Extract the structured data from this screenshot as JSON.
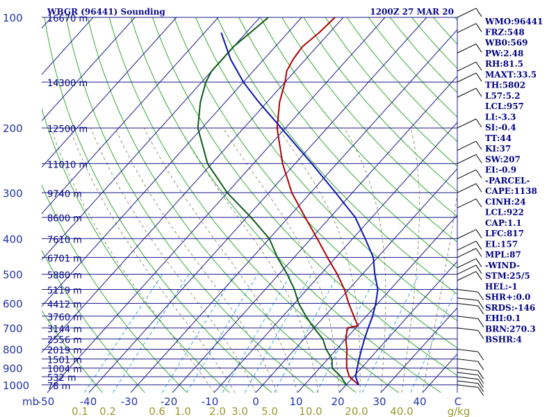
{
  "chart_data": {
    "type": "line",
    "title": "WBGR (96441) Sounding",
    "time": "1200Z 27 MAR 20",
    "x_axis_unit": "mb",
    "pressure_ticks": [
      "100",
      "200",
      "300",
      "400",
      "500",
      "600",
      "700",
      "800",
      "900",
      "1000"
    ],
    "temperature_ticks": [
      "-50",
      "-40",
      "-30",
      "-20",
      "-10",
      "0",
      "10",
      "20",
      "30",
      "40",
      "C"
    ],
    "mixing_ratio_ticks": [
      "0.1",
      "0.2",
      "0.6",
      "1.0",
      "2.0",
      "3.0",
      "5.0",
      "10.0",
      "20.0",
      "40.0",
      "g/kg"
    ],
    "height_levels": [
      {
        "p": 100,
        "label": "16670 m"
      },
      {
        "p": 150,
        "label": "14300 m"
      },
      {
        "p": 200,
        "label": "12500 m"
      },
      {
        "p": 250,
        "label": "11010 m"
      },
      {
        "p": 300,
        "label": "9740 m"
      },
      {
        "p": 350,
        "label": "8600 m"
      },
      {
        "p": 400,
        "label": "7610 m"
      },
      {
        "p": 450,
        "label": "6701 m"
      },
      {
        "p": 500,
        "label": "5880 m"
      },
      {
        "p": 550,
        "label": "5119 m"
      },
      {
        "p": 600,
        "label": "4412 m"
      },
      {
        "p": 650,
        "label": "3760 m"
      },
      {
        "p": 700,
        "label": "3144 m"
      },
      {
        "p": 750,
        "label": "2556 m"
      },
      {
        "p": 800,
        "label": "2019 m"
      },
      {
        "p": 850,
        "label": "1501 m"
      },
      {
        "p": 900,
        "label": "1004 m"
      },
      {
        "p": 950,
        "label": "532 m"
      },
      {
        "p": 1000,
        "label": "78 m"
      }
    ],
    "series": [
      {
        "name": "",
        "color": "#aa0000",
        "points": [
          [
            100,
            -62
          ],
          [
            110,
            -62.5
          ],
          [
            120,
            -63.5
          ],
          [
            130,
            -63
          ],
          [
            140,
            -62
          ],
          [
            150,
            -60
          ],
          [
            170,
            -57
          ],
          [
            200,
            -52
          ],
          [
            250,
            -43
          ],
          [
            300,
            -34.5
          ],
          [
            350,
            -26
          ],
          [
            400,
            -18.5
          ],
          [
            450,
            -12
          ],
          [
            500,
            -6
          ],
          [
            550,
            -1
          ],
          [
            600,
            3
          ],
          [
            650,
            7
          ],
          [
            690,
            10
          ],
          [
            700,
            8
          ],
          [
            750,
            10
          ],
          [
            800,
            12.5
          ],
          [
            850,
            14.5
          ],
          [
            900,
            16.5
          ],
          [
            950,
            19
          ],
          [
            1000,
            23
          ]
        ]
      },
      {
        "name": "",
        "color": "#0a5a14",
        "points": [
          [
            100,
            -78
          ],
          [
            110,
            -79
          ],
          [
            120,
            -80
          ],
          [
            130,
            -80
          ],
          [
            140,
            -80
          ],
          [
            150,
            -79
          ],
          [
            170,
            -76
          ],
          [
            200,
            -71
          ],
          [
            250,
            -61
          ],
          [
            300,
            -50
          ],
          [
            350,
            -39
          ],
          [
            400,
            -30
          ],
          [
            450,
            -24
          ],
          [
            500,
            -18
          ],
          [
            550,
            -13
          ],
          [
            600,
            -9
          ],
          [
            650,
            -4.5
          ],
          [
            700,
            0
          ],
          [
            750,
            4.5
          ],
          [
            800,
            7.5
          ],
          [
            850,
            11
          ],
          [
            900,
            13
          ],
          [
            950,
            17
          ],
          [
            1000,
            20
          ]
        ]
      },
      {
        "name": "",
        "color": "#0a14a8",
        "points": [
          [
            110,
            -86
          ],
          [
            130,
            -78
          ],
          [
            150,
            -70
          ],
          [
            170,
            -62
          ],
          [
            200,
            -51
          ],
          [
            250,
            -36
          ],
          [
            300,
            -24
          ],
          [
            350,
            -14
          ],
          [
            400,
            -7
          ],
          [
            450,
            -1
          ],
          [
            500,
            3
          ],
          [
            550,
            7
          ],
          [
            600,
            9.5
          ],
          [
            650,
            11.5
          ],
          [
            700,
            13
          ],
          [
            750,
            14.5
          ],
          [
            800,
            16
          ],
          [
            850,
            17.5
          ],
          [
            900,
            19
          ],
          [
            950,
            20.5
          ],
          [
            1000,
            23
          ]
        ]
      }
    ],
    "indices": [
      "WMO:96441",
      "FRZ:548",
      "WB0:569",
      "PW:2.48",
      "RH:81.5",
      "MAXT:33.5",
      "TH:5802",
      "L57:5.2",
      "LCL:957",
      "LI:-3.3",
      "SI:-0.4",
      "TT:44",
      "KI:37",
      "SW:207",
      "EI:-0.9",
      "-PARCEL-",
      "CAPE:1138",
      "CINH:24",
      "LCL:922",
      "CAP:1.1",
      "LFC:817",
      "EL:157",
      "MPL:87",
      "-WIND-",
      "STM:25/5",
      "HEL:-1",
      "SHR+:0.0",
      "SRDS:-146",
      "EHI:0.1",
      "BRN:270.3",
      "BSHR:4"
    ]
  }
}
